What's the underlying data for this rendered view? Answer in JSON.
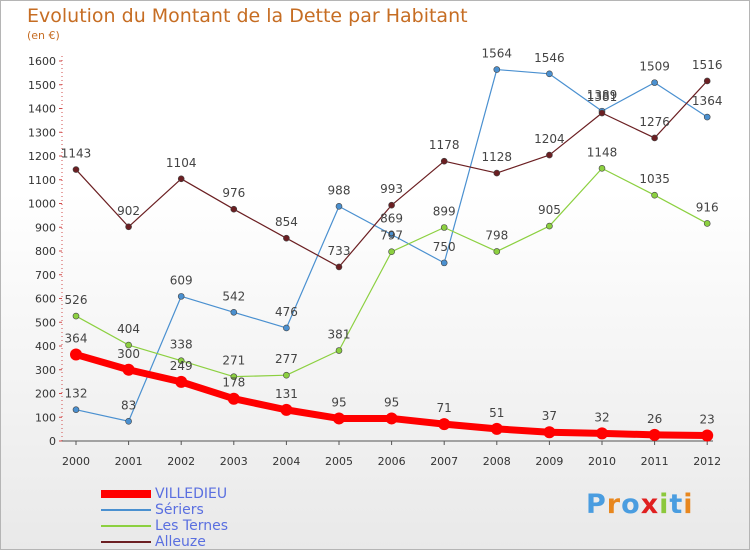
{
  "title": "Evolution du Montant de la Dette par Habitant",
  "unit_label": "(en €)",
  "brand": {
    "letters": [
      "P",
      "r",
      "o",
      "x",
      "i",
      "t",
      "i"
    ],
    "colors": [
      "#4a9de0",
      "#e8871e",
      "#4a9de0",
      "#e02020",
      "#8cc83c",
      "#4a9de0",
      "#e8871e"
    ]
  },
  "chart_data": {
    "type": "line",
    "x": [
      "2000",
      "2001",
      "2002",
      "2003",
      "2004",
      "2005",
      "2006",
      "2007",
      "2008",
      "2009",
      "2010",
      "2011",
      "2012"
    ],
    "ylim": [
      0,
      1600
    ],
    "yticks": [
      "0",
      "100",
      "200",
      "300",
      "400",
      "500",
      "600",
      "700",
      "800",
      "900",
      "1000",
      "1100",
      "1200",
      "1300",
      "1400",
      "1500",
      "1600"
    ],
    "grid": false,
    "legend_position": "bottom-left",
    "series": [
      {
        "name": "VILLEDIEU",
        "color": "#ff0000",
        "values": [
          364,
          300,
          249,
          178,
          131,
          95,
          95,
          71,
          51,
          37,
          32,
          26,
          23
        ],
        "labels": [
          "364",
          "300",
          "249",
          "178",
          "131",
          "95",
          "95",
          "71",
          "51",
          "37",
          "32",
          "26",
          "23"
        ]
      },
      {
        "name": "Sériers",
        "color": "#4a90d0",
        "values": [
          132,
          83,
          609,
          542,
          476,
          988,
          869,
          750,
          1564,
          1546,
          1389,
          1509,
          1364
        ],
        "labels": [
          "132",
          "83",
          "609",
          "542",
          "476",
          "988",
          "869",
          "750",
          "1564",
          "1546",
          "1389",
          "1509",
          "1364"
        ]
      },
      {
        "name": "Les Ternes",
        "color": "#8cd040",
        "values": [
          526,
          404,
          338,
          271,
          277,
          381,
          797,
          899,
          798,
          905,
          1148,
          1035,
          916
        ],
        "labels": [
          "526",
          "404",
          "338",
          "271",
          "277",
          "381",
          "797",
          "899",
          "798",
          "905",
          "1148",
          "1035",
          "916"
        ]
      },
      {
        "name": "Alleuze",
        "color": "#6b1f22",
        "values": [
          1143,
          902,
          1104,
          976,
          854,
          733,
          993,
          1178,
          1128,
          1204,
          1381,
          1276,
          1516
        ],
        "labels": [
          "1143",
          "902",
          "1104",
          "976",
          "854",
          "733",
          "993",
          "1178",
          "1128",
          "1204",
          "1381",
          "1276",
          "1516"
        ]
      }
    ]
  }
}
